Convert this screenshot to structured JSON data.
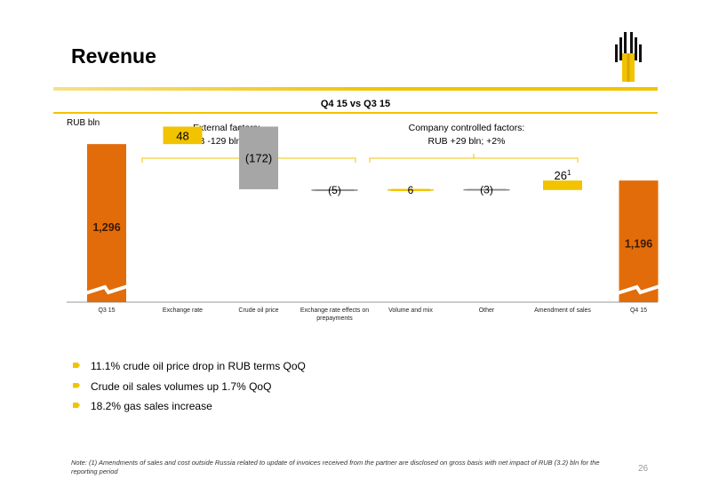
{
  "header": {
    "title": "Revenue",
    "subtitle": "Q4 15 vs Q3 15",
    "unit": "RUB bln",
    "groups": [
      {
        "line1": "External factors:",
        "line2": "RUB -129 bln; -10%"
      },
      {
        "line1": "Company controlled factors:",
        "line2": "RUB +29 bln; +2%"
      }
    ]
  },
  "colors": {
    "total": "#e36c0a",
    "increase": "#f2c300",
    "decrease": "#a6a6a6",
    "accent": "#f2c300"
  },
  "chart_data": {
    "type": "bar",
    "subtype": "waterfall",
    "categories": [
      "Q3 15",
      "Exchange rate",
      "Crude oil price",
      "Exchange rate effects on prepayments",
      "Volume and mix",
      "Other",
      "Amendment of sales",
      "Q4 15"
    ],
    "values": [
      1296,
      48,
      -172,
      -5,
      6,
      -3,
      26,
      1196
    ],
    "kinds": [
      "total",
      "delta",
      "delta",
      "delta",
      "delta",
      "delta",
      "delta",
      "total"
    ],
    "labels": [
      "1,296",
      "48",
      "(172)",
      "(5)",
      "6",
      "(3)",
      "26",
      "1,196"
    ],
    "label_superscripts": [
      "",
      "",
      "",
      "",
      "",
      "",
      "1",
      ""
    ],
    "axis_break": true,
    "grid": false,
    "legend": "none"
  },
  "bullets": [
    "11.1% crude oil price drop in RUB terms QoQ",
    "Crude oil sales volumes up 1.7% QoQ",
    "18.2% gas sales increase"
  ],
  "footer": {
    "note": "Note: (1) Amendments of sales and cost outside Russia related to update of invoices received from the partner  are disclosed on gross basis with net impact of RUB (3.2) bln for the reporting period",
    "page": "26"
  }
}
